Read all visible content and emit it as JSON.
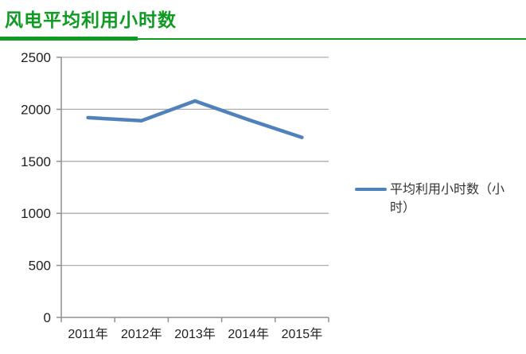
{
  "page": {
    "title": "风电平均利用小时数"
  },
  "theme": {
    "title_green": "#0e9b22",
    "line_blue": "#4f81bd",
    "grid_gray": "#adadad",
    "axis_gray": "#8f8f8f",
    "label_color": "#1f1f1f",
    "legend_text_color": "#333333"
  },
  "chart_data": {
    "type": "line",
    "title": "风电平均利用小时数",
    "categories": [
      "2011年",
      "2012年",
      "2013年",
      "2014年",
      "2015年"
    ],
    "series": [
      {
        "name": "平均利用小时数（小时）",
        "color": "#4f81bd",
        "values": [
          1920,
          1890,
          2080,
          1900,
          1730
        ]
      }
    ],
    "xlabel": "",
    "ylabel": "",
    "ylim": [
      0,
      2500
    ],
    "yticks": [
      0,
      500,
      1000,
      1500,
      2000,
      2500
    ],
    "grid": true,
    "legend_position": "right",
    "legend_label": "平均利用小时数（小时）"
  }
}
